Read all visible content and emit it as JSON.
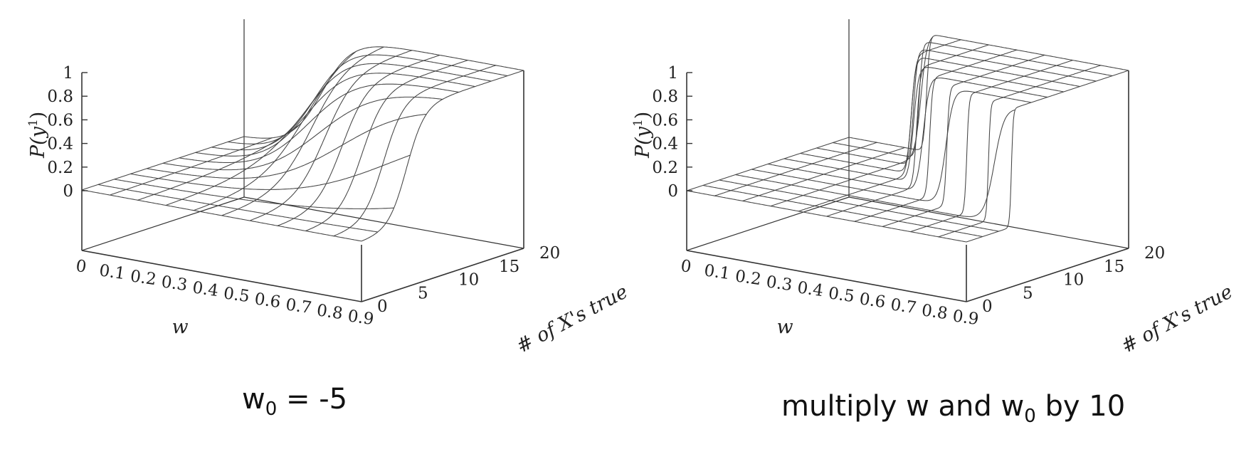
{
  "chart_data": [
    {
      "type": "surface",
      "title": "",
      "zlabel_prefix": "P(y",
      "zlabel_sup": "1",
      "zlabel_suffix": ")",
      "xlabel": "w",
      "ylabel": "# of X's true",
      "x_ticks": [
        "0",
        "0.1",
        "0.2",
        "0.3",
        "0.4",
        "0.5",
        "0.6",
        "0.7",
        "0.8",
        "0.9"
      ],
      "y_ticks": [
        "0",
        "5",
        "10",
        "15",
        "20"
      ],
      "z_ticks": [
        "0",
        "0.2",
        "0.4",
        "0.6",
        "0.8",
        "1"
      ],
      "xlim": [
        0,
        0.9
      ],
      "ylim": [
        0,
        20
      ],
      "zlim": [
        0,
        1
      ],
      "function": "P(y1) = 1 / (1 + exp(-(w0 + w * n)))",
      "w0": -5,
      "scale": 1,
      "caption_main": "w",
      "caption_sub": "0",
      "caption_rest": " = -5"
    },
    {
      "type": "surface",
      "title": "",
      "zlabel_prefix": "P(y",
      "zlabel_sup": "1",
      "zlabel_suffix": ")",
      "xlabel": "w",
      "ylabel": "# of X's true",
      "x_ticks": [
        "0",
        "0.1",
        "0.2",
        "0.3",
        "0.4",
        "0.5",
        "0.6",
        "0.7",
        "0.8",
        "0.9"
      ],
      "y_ticks": [
        "0",
        "5",
        "10",
        "15",
        "20"
      ],
      "z_ticks": [
        "0",
        "0.2",
        "0.4",
        "0.6",
        "0.8",
        "1"
      ],
      "xlim": [
        0,
        0.9
      ],
      "ylim": [
        0,
        20
      ],
      "zlim": [
        0,
        1
      ],
      "function": "P(y1) = 1 / (1 + exp(-10 * (w0 + w * n)))",
      "w0": -5,
      "scale": 10,
      "caption_main": "multiply w and w",
      "caption_sub": "0",
      "caption_rest": " by 10"
    }
  ]
}
